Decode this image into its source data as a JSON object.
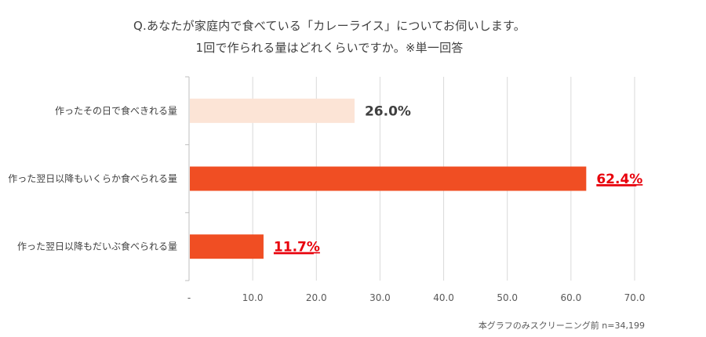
{
  "question": {
    "line1": "Q.あなたが家庭内で食べている「カレーライス」についてお伺いします。",
    "line2": "1回で作られる量はどれくらいですか。※単一回答"
  },
  "note": "本グラフのみスクリーニング前 n=34,199",
  "colors": {
    "light_bar": "#FCE4D6",
    "main_bar": "#F04E23",
    "highlight_label": "#E8000B",
    "normal_label": "#404040",
    "grid": "#D9D9D9"
  },
  "chart_data": {
    "type": "bar",
    "orientation": "horizontal",
    "categories": [
      "作ったその日で食べきれる量",
      "作った翌日以降もいくらか食べられる量",
      "作った翌日以降もだいぶ食べられる量"
    ],
    "values": [
      26.0,
      62.4,
      11.7
    ],
    "value_labels": [
      "26.0%",
      "62.4%",
      "11.7%"
    ],
    "bar_colors": [
      "#FCE4D6",
      "#F04E23",
      "#F04E23"
    ],
    "highlighted": [
      false,
      true,
      true
    ],
    "xlim": [
      0,
      70
    ],
    "xticks": [
      "-",
      "10.0",
      "20.0",
      "30.0",
      "40.0",
      "50.0",
      "60.0",
      "70.0"
    ],
    "grid": true
  }
}
